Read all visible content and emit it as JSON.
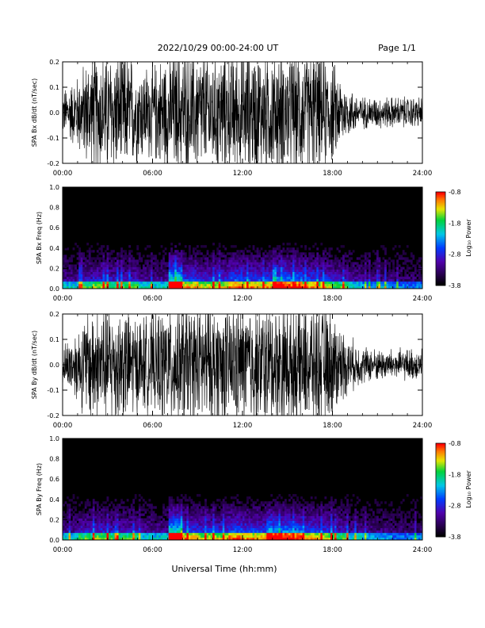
{
  "header": {
    "title": "2022/10/29  00:00-24:00 UT",
    "page": "Page 1/1"
  },
  "xlabel": "Universal Time (hh:mm)",
  "chart_data": [
    {
      "type": "line",
      "ylabel": "SPA Bx dB/dt (nT/sec)",
      "xlim_hours": [
        0,
        24
      ],
      "xticks": [
        "00:00",
        "06:00",
        "12:00",
        "18:00",
        "24:00"
      ],
      "ylim": [
        -0.2,
        0.2
      ],
      "yticks": [
        "-0.2",
        "-0.1",
        "0.0",
        "0.1",
        "0.2"
      ],
      "series": [
        {
          "x_hours": [
            0,
            1,
            2,
            3,
            4,
            5,
            6,
            7,
            8,
            9,
            10,
            11,
            12,
            13,
            14,
            15,
            16,
            17,
            18,
            19,
            20,
            21,
            22,
            23,
            24
          ],
          "envelope_amplitude": [
            0.07,
            0.12,
            0.2,
            0.2,
            0.2,
            0.16,
            0.15,
            0.2,
            0.2,
            0.2,
            0.2,
            0.2,
            0.2,
            0.2,
            0.2,
            0.2,
            0.2,
            0.2,
            0.16,
            0.08,
            0.05,
            0.05,
            0.05,
            0.05,
            0.05
          ]
        }
      ]
    },
    {
      "type": "heatmap",
      "ylabel": "SPA Bx Freq (Hz)",
      "xlim_hours": [
        0,
        24
      ],
      "xticks": [
        "00:00",
        "06:00",
        "12:00",
        "18:00",
        "24:00"
      ],
      "ylim": [
        0,
        1.0
      ],
      "yticks": [
        "0.0",
        "0.2",
        "0.4",
        "0.6",
        "0.8",
        "1.0"
      ],
      "colorbar": {
        "label": "Log₁₀ Power",
        "ticks": [
          "-0.8",
          "-1.8",
          "-2.8",
          "-3.8"
        ],
        "range": [
          -3.8,
          -0.8
        ]
      },
      "activity_by_hour": [
        0.35,
        0.45,
        0.5,
        0.45,
        0.45,
        0.35,
        0.35,
        0.95,
        0.6,
        0.55,
        0.55,
        0.65,
        0.6,
        0.6,
        0.75,
        0.7,
        0.6,
        0.55,
        0.45,
        0.35,
        0.3,
        0.3,
        0.25,
        0.25
      ]
    },
    {
      "type": "line",
      "ylabel": "SPA By dB/dt (nT/sec)",
      "xlim_hours": [
        0,
        24
      ],
      "xticks": [
        "00:00",
        "06:00",
        "12:00",
        "18:00",
        "24:00"
      ],
      "ylim": [
        -0.2,
        0.2
      ],
      "yticks": [
        "-0.2",
        "-0.1",
        "0.0",
        "0.1",
        "0.2"
      ],
      "series": [
        {
          "x_hours": [
            0,
            1,
            2,
            3,
            4,
            5,
            6,
            7,
            8,
            9,
            10,
            11,
            12,
            13,
            14,
            15,
            16,
            17,
            18,
            19,
            20,
            21,
            22,
            23,
            24
          ],
          "envelope_amplitude": [
            0.06,
            0.12,
            0.2,
            0.2,
            0.2,
            0.16,
            0.15,
            0.2,
            0.2,
            0.2,
            0.2,
            0.2,
            0.2,
            0.2,
            0.2,
            0.2,
            0.2,
            0.2,
            0.17,
            0.09,
            0.06,
            0.05,
            0.05,
            0.05,
            0.05
          ]
        }
      ]
    },
    {
      "type": "heatmap",
      "ylabel": "SPA By Freq (Hz)",
      "xlim_hours": [
        0,
        24
      ],
      "xticks": [
        "00:00",
        "06:00",
        "12:00",
        "18:00",
        "24:00"
      ],
      "ylim": [
        0,
        1.0
      ],
      "yticks": [
        "0.0",
        "0.2",
        "0.4",
        "0.6",
        "0.8",
        "1.0"
      ],
      "colorbar": {
        "label": "Log₁₀ Power",
        "ticks": [
          "-0.8",
          "-1.8",
          "-2.8",
          "-3.8"
        ],
        "range": [
          -3.8,
          -0.8
        ]
      },
      "activity_by_hour": [
        0.35,
        0.45,
        0.5,
        0.45,
        0.45,
        0.35,
        0.35,
        0.95,
        0.6,
        0.55,
        0.55,
        0.65,
        0.6,
        0.6,
        0.75,
        0.7,
        0.6,
        0.55,
        0.45,
        0.35,
        0.3,
        0.3,
        0.25,
        0.25
      ]
    }
  ]
}
